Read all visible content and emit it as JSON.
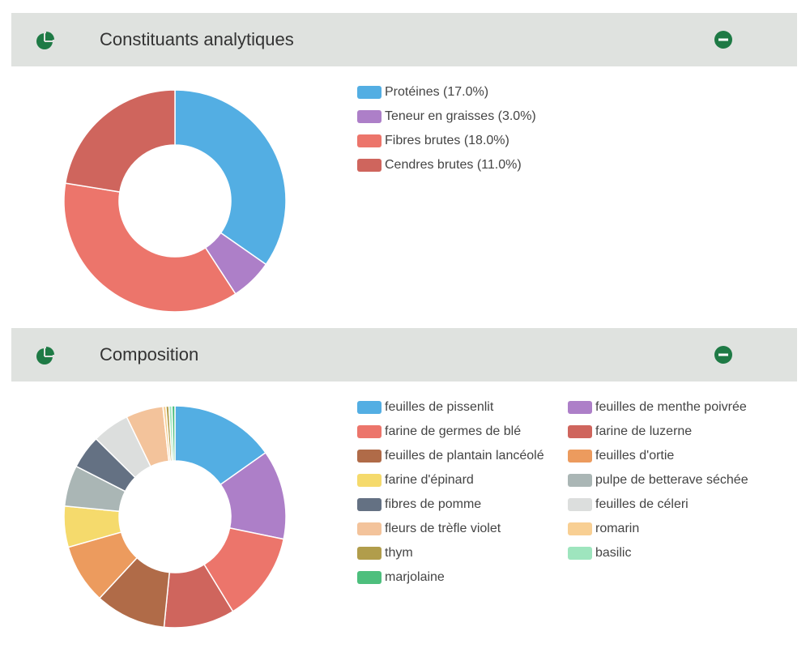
{
  "panels": [
    {
      "title": "Constituants analytiques",
      "chart_data": {
        "type": "pie",
        "donut": true,
        "title": "",
        "legend_position": "right",
        "categories": [
          "Protéines (17.0%)",
          "Teneur en graisses (3.0%)",
          "Fibres brutes (18.0%)",
          "Cendres brutes (11.0%)"
        ],
        "values": [
          17.0,
          3.0,
          18.0,
          11.0
        ],
        "colors": [
          "#53aee3",
          "#ad7fc8",
          "#ec756b",
          "#cf655d"
        ]
      }
    },
    {
      "title": "Composition",
      "chart_data": {
        "type": "pie",
        "donut": true,
        "title": "",
        "legend_position": "right",
        "categories": [
          "feuilles de pissenlit",
          "feuilles de menthe poivrée",
          "farine de germes de blé",
          "farine de luzerne",
          "feuilles de plantain lancéolé",
          "feuilles d'ortie",
          "farine d'épinard",
          "pulpe de betterave séchée",
          "fibres de pomme",
          "feuilles de céleri",
          "fleurs de trèfle violet",
          "romarin",
          "thym",
          "basilic",
          "marjolaine"
        ],
        "values": [
          14,
          12,
          12,
          9.5,
          9.5,
          8,
          5.5,
          5.5,
          4.5,
          5,
          5,
          0.4,
          0.4,
          0.4,
          0.4
        ],
        "colors": [
          "#53aee3",
          "#ad7fc8",
          "#ec756b",
          "#cf655d",
          "#b06b48",
          "#ec9b5e",
          "#f5da6c",
          "#aab6b5",
          "#647183",
          "#dcdedd",
          "#f3c39b",
          "#f8cf93",
          "#b19d4b",
          "#9ee5be",
          "#4dbf7d"
        ]
      }
    }
  ]
}
